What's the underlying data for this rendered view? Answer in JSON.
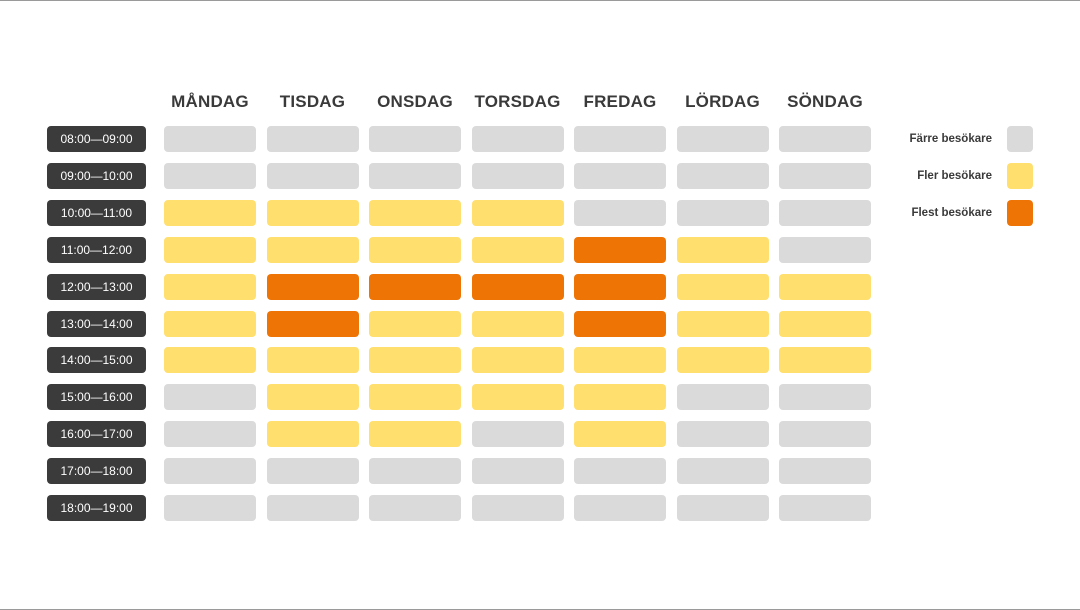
{
  "chart_data": {
    "type": "heatmap",
    "days": [
      "MÅNDAG",
      "TISDAG",
      "ONSDAG",
      "TORSDAG",
      "FREDAG",
      "LÖRDAG",
      "SÖNDAG"
    ],
    "time_slots": [
      "08:00—09:00",
      "09:00—10:00",
      "10:00—11:00",
      "11:00—12:00",
      "12:00—13:00",
      "13:00—14:00",
      "14:00—15:00",
      "15:00—16:00",
      "16:00—17:00",
      "17:00—18:00",
      "18:00—19:00"
    ],
    "levels": [
      [
        0,
        0,
        0,
        0,
        0,
        0,
        0
      ],
      [
        0,
        0,
        0,
        0,
        0,
        0,
        0
      ],
      [
        1,
        1,
        1,
        1,
        0,
        0,
        0
      ],
      [
        1,
        1,
        1,
        1,
        2,
        1,
        0
      ],
      [
        1,
        2,
        2,
        2,
        2,
        1,
        1
      ],
      [
        1,
        2,
        1,
        1,
        2,
        1,
        1
      ],
      [
        1,
        1,
        1,
        1,
        1,
        1,
        1
      ],
      [
        0,
        1,
        1,
        1,
        1,
        0,
        0
      ],
      [
        0,
        1,
        1,
        0,
        1,
        0,
        0
      ],
      [
        0,
        0,
        0,
        0,
        0,
        0,
        0
      ],
      [
        0,
        0,
        0,
        0,
        0,
        0,
        0
      ]
    ],
    "legend": [
      {
        "label": "Färre besökare",
        "level": 0,
        "color": "#dadada"
      },
      {
        "label": "Fler besökare",
        "level": 1,
        "color": "#ffdf6e"
      },
      {
        "label": "Flest besökare",
        "level": 2,
        "color": "#ee7405"
      }
    ],
    "legend_position": "right"
  }
}
